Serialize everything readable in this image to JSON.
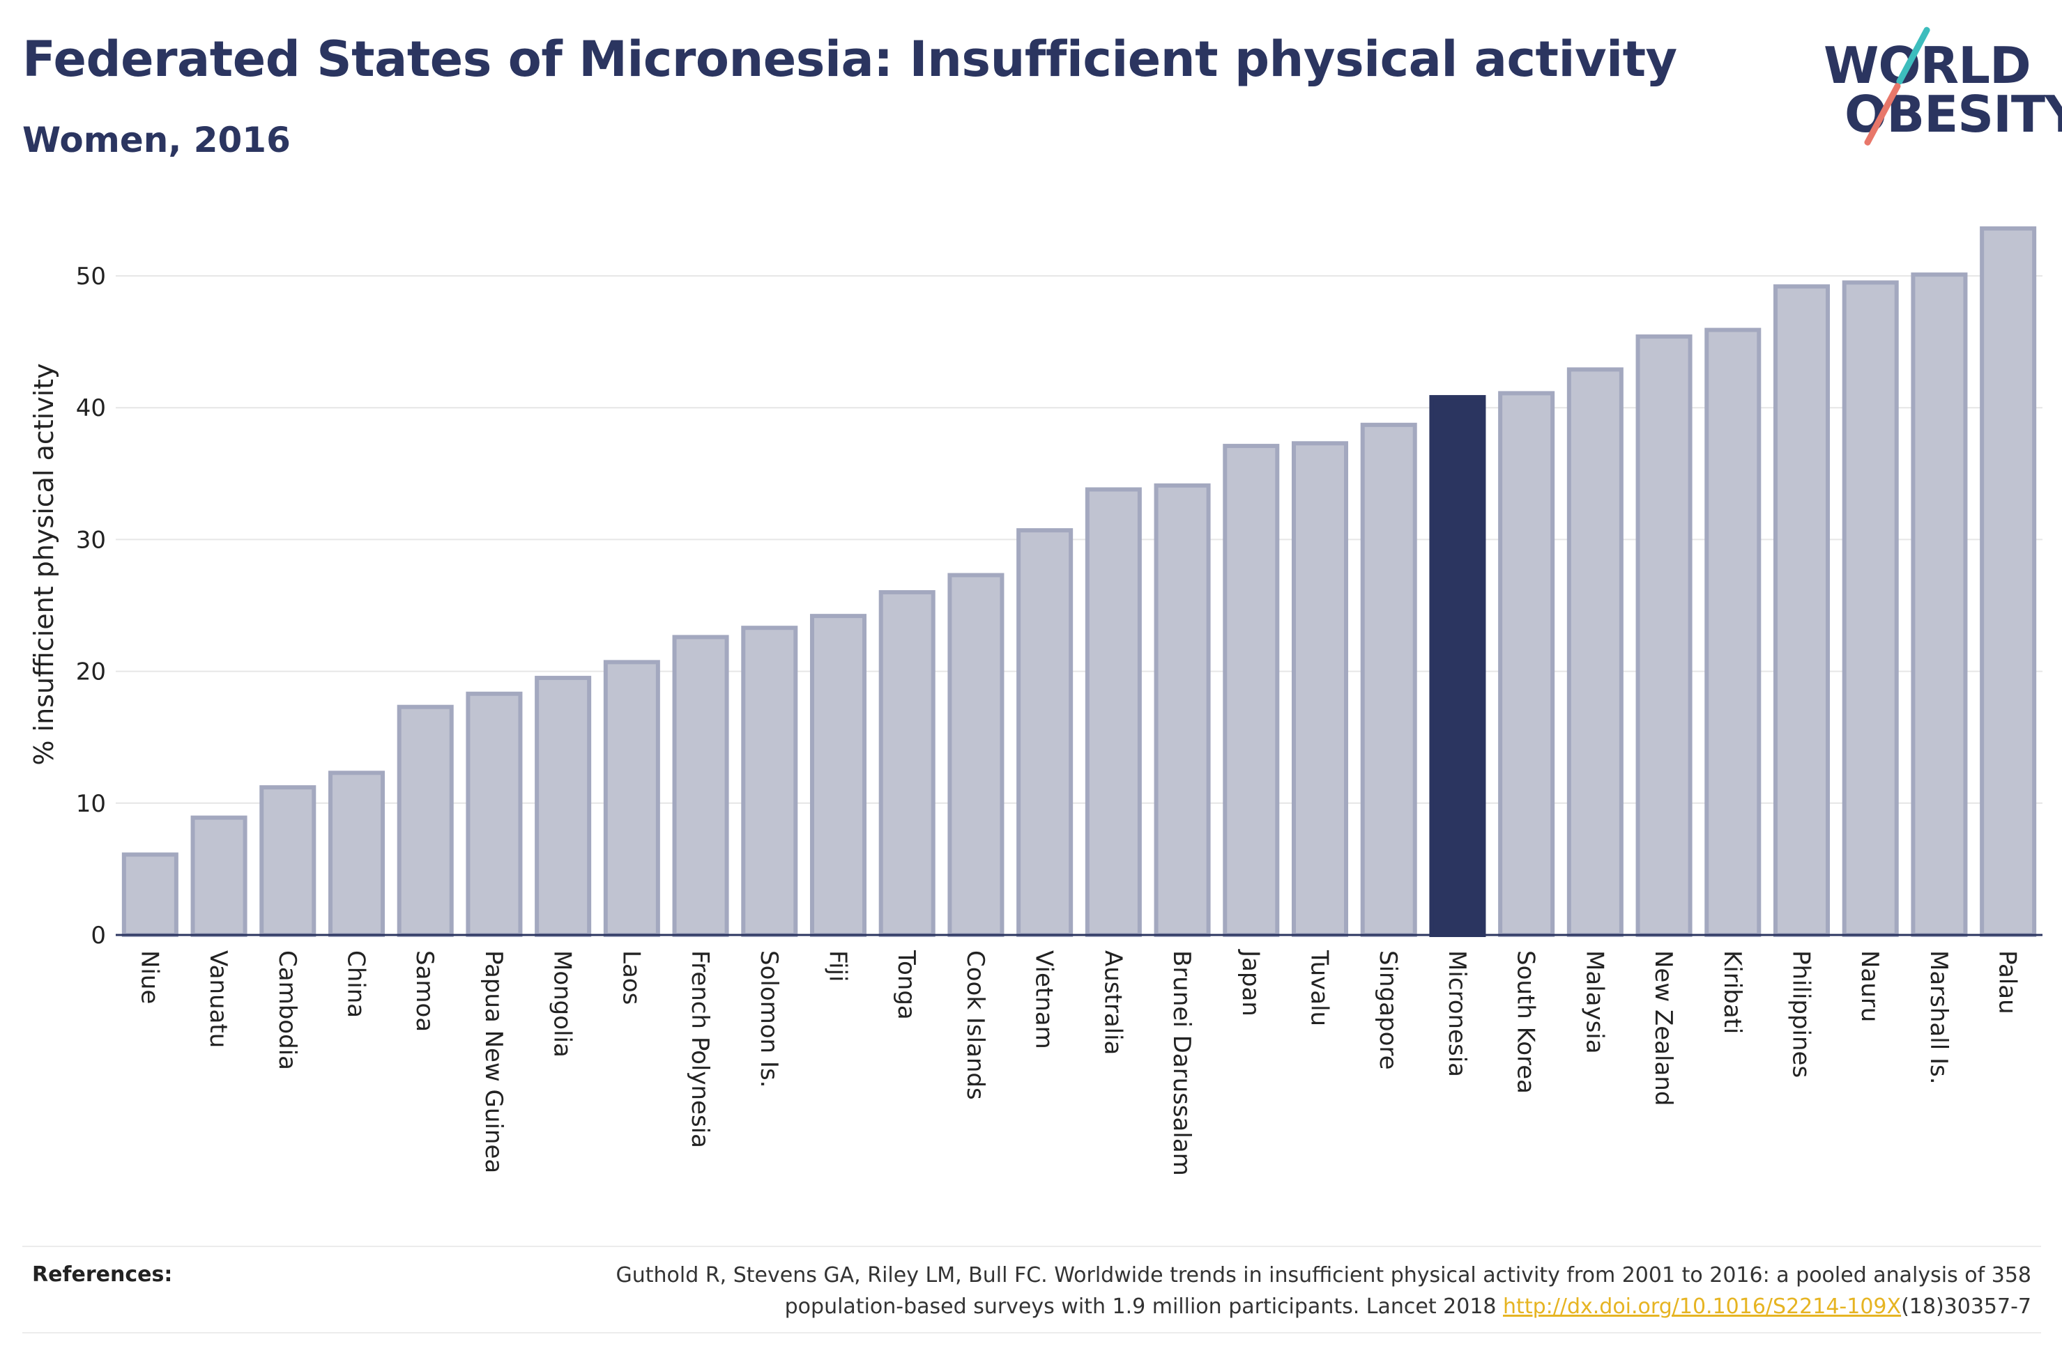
{
  "header": {
    "title": "Federated States of Micronesia: Insufficient physical activity",
    "subtitle": "Women, 2016"
  },
  "logo": {
    "line1": "WORLD",
    "line2": "OBESITY"
  },
  "chart_data": {
    "type": "bar",
    "title": "Federated States of Micronesia: Insufficient physical activity",
    "subtitle": "Women, 2016",
    "xlabel": "",
    "ylabel": "% insufficient physical activity",
    "ylim": [
      0,
      55
    ],
    "yticks": [
      0,
      10,
      20,
      30,
      40,
      50
    ],
    "grid": true,
    "legend": "none",
    "highlight": "Micronesia",
    "colors": {
      "bar": "#c0c3d1",
      "bar_border": "#a3a8bf",
      "highlight": "#2b3560",
      "axis": "#2b3560",
      "grid": "#e6e6e6"
    },
    "categories": [
      "Niue",
      "Vanuatu",
      "Cambodia",
      "China",
      "Samoa",
      "Papua New Guinea",
      "Mongolia",
      "Laos",
      "French Polynesia",
      "Solomon Is.",
      "Fiji",
      "Tonga",
      "Cook Islands",
      "Vietnam",
      "Australia",
      "Brunei Darussalam",
      "Japan",
      "Tuvalu",
      "Singapore",
      "Micronesia",
      "South Korea",
      "Malaysia",
      "New Zealand",
      "Kiribati",
      "Philippines",
      "Nauru",
      "Marshall Is.",
      "Palau"
    ],
    "values": [
      6.1,
      8.9,
      11.2,
      12.3,
      17.3,
      18.3,
      19.5,
      20.7,
      22.6,
      23.3,
      24.2,
      26.0,
      27.3,
      30.7,
      33.8,
      34.1,
      37.1,
      37.3,
      38.7,
      40.8,
      41.1,
      42.9,
      45.4,
      45.9,
      49.2,
      49.5,
      50.1,
      53.6
    ]
  },
  "references": {
    "label": "References:",
    "text_before": "Guthold R, Stevens GA, Riley LM, Bull FC. Worldwide trends in insufficient physical activity from 2001 to 2016: a pooled analysis of 358 population-based surveys with 1.9 million participants. Lancet 2018 ",
    "link": "http://dx.doi.org/10.1016/S2214-109X",
    "text_after": "(18)30357-7"
  }
}
